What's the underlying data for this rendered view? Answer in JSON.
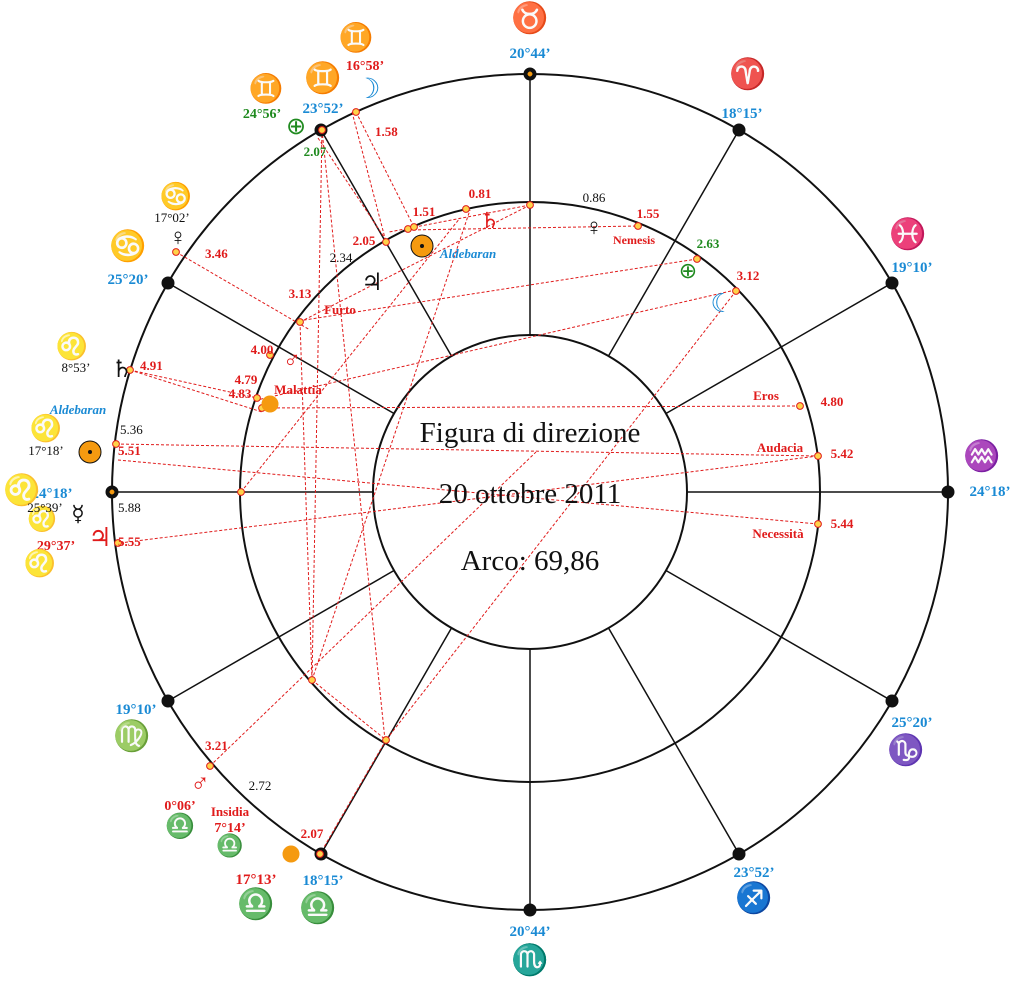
{
  "center": {
    "title": "Figura di direzione",
    "date": "20 ottobre 2011",
    "arc": "Arco: 69,86"
  },
  "colors": {
    "blue": "#1a8ad4",
    "red": "#e01b1b",
    "green": "#1f8a1f",
    "black": "#111111",
    "orange": "#f59a10"
  },
  "cusps": [
    {
      "id": "c10",
      "deg": "20°44’",
      "sign": "♉",
      "color": "blue"
    },
    {
      "id": "c11",
      "deg": "18°15’",
      "sign": "♈",
      "color": "blue"
    },
    {
      "id": "c12",
      "deg": "19°10’",
      "sign": "♓",
      "color": "blue"
    },
    {
      "id": "c1",
      "deg": "24°18’",
      "sign": "♒",
      "color": "blue"
    },
    {
      "id": "c2",
      "deg": "25°20’",
      "sign": "♑",
      "color": "blue"
    },
    {
      "id": "c3",
      "deg": "23°52’",
      "sign": "♐",
      "color": "blue"
    },
    {
      "id": "c4",
      "deg": "20°44’",
      "sign": "♏",
      "color": "blue"
    },
    {
      "id": "c5",
      "deg": "18°15’",
      "sign": "♎",
      "color": "blue"
    },
    {
      "id": "c6",
      "deg": "19°10’",
      "sign": "♍",
      "color": "blue"
    },
    {
      "id": "c7",
      "deg": "24°18’",
      "sign": "♌",
      "color": "blue"
    },
    {
      "id": "c8",
      "deg": "25°20’",
      "sign": "♋",
      "color": "blue"
    },
    {
      "id": "c9",
      "deg": "23°52’",
      "sign": "♊",
      "color": "blue"
    }
  ],
  "outer_points": [
    {
      "key": "moon_gem",
      "sign": "♊",
      "deg": "16°58’",
      "color": "red",
      "value": "1.58"
    },
    {
      "key": "pof_gem",
      "sign": "♊",
      "deg": "24°56’",
      "color": "green",
      "value": "2.07"
    },
    {
      "key": "venus_cnc",
      "sign": "♋",
      "deg": "17°02’",
      "color": "black",
      "value": "3.46"
    },
    {
      "key": "saturn_leo",
      "sign": "♌",
      "deg": "8°53’",
      "color": "black",
      "value": "4.91"
    },
    {
      "key": "sun_leo",
      "sign": "♌",
      "deg": "17°18’",
      "color": "black",
      "value": "5.51",
      "star": "Aldebaran",
      "extra": "5.36"
    },
    {
      "key": "mercury_leo",
      "sign": "♌",
      "deg": "25°39’",
      "color": "black",
      "extra": "5.88"
    },
    {
      "key": "jupiter_leo",
      "sign": "♌",
      "deg": "29°37’",
      "color": "red",
      "value": "5.55"
    },
    {
      "key": "mars_lib",
      "sign": "♎",
      "deg": "0°06’",
      "color": "red",
      "value": "3.21",
      "extra": "2.72"
    },
    {
      "key": "insidia",
      "name": "Insidia",
      "sign": "♎",
      "deg": "7°14’",
      "color": "red"
    },
    {
      "key": "sun_lib",
      "sign": "♎",
      "deg": "17°13’",
      "color": "red",
      "value": "2.07"
    }
  ],
  "inner_points": [
    {
      "key": "saturn",
      "value": "0.81",
      "color": "red"
    },
    {
      "key": "venus",
      "value": "0.86",
      "color": "black"
    },
    {
      "key": "nemesis",
      "name": "Nemesis",
      "value": "1.55",
      "color": "red"
    },
    {
      "key": "pof",
      "value": "2.63",
      "color": "green"
    },
    {
      "key": "moon",
      "value": "3.12",
      "color": "red"
    },
    {
      "key": "eros",
      "name": "Eros",
      "value": "4.80",
      "color": "red"
    },
    {
      "key": "audacia",
      "name": "Audacia",
      "value": "5.42",
      "color": "red"
    },
    {
      "key": "necessita",
      "name": "Necessità",
      "value": "5.44",
      "color": "red"
    },
    {
      "key": "sun_ald",
      "star": "Aldebaran",
      "value": "1.51",
      "color": "red"
    },
    {
      "key": "jupiter",
      "value": "2.05",
      "extra": "2.34",
      "color": "red"
    },
    {
      "key": "furto",
      "name": "Furto",
      "value": "3.13",
      "color": "red"
    },
    {
      "key": "mars",
      "value": "4.00",
      "color": "red"
    },
    {
      "key": "malattia",
      "name": "Malattia",
      "value": "4.79",
      "extra": "4.83",
      "color": "red"
    }
  ]
}
